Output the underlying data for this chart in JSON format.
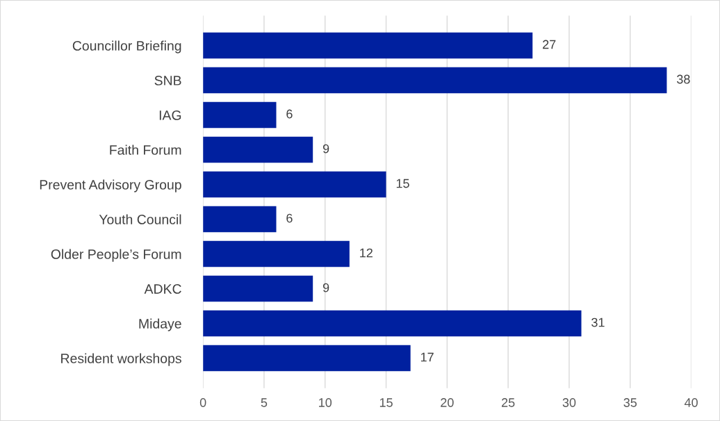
{
  "chart_data": {
    "type": "bar",
    "orientation": "horizontal",
    "categories": [
      "Councillor Briefing",
      "SNB",
      "IAG",
      "Faith Forum",
      "Prevent Advisory Group",
      "Youth Council",
      "Older People’s Forum",
      "ADKC",
      "Midaye",
      "Resident workshops"
    ],
    "values": [
      27,
      38,
      6,
      9,
      15,
      6,
      12,
      9,
      31,
      17
    ],
    "color": "#00209f",
    "xlim": [
      0,
      40
    ],
    "xticks": [
      0,
      5,
      10,
      15,
      20,
      25,
      30,
      35,
      40
    ],
    "grid": "x",
    "data_labels": true
  }
}
